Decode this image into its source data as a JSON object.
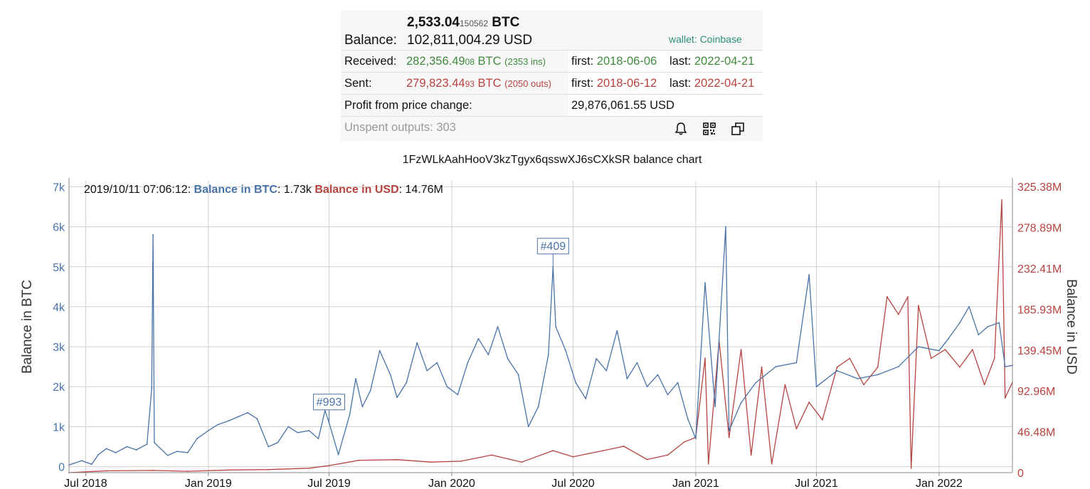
{
  "balance": {
    "btc_main": "2,533.04",
    "btc_small": "150562",
    "btc_unit": "BTC",
    "label": "Balance:",
    "usd": "102,811,004.29 USD",
    "wallet": "wallet: Coinbase"
  },
  "received": {
    "label": "Received:",
    "btc_main": "282,356.49",
    "btc_small": "08",
    "btc_unit": "BTC",
    "count": "(2353 ins)",
    "first_label": "first:",
    "first": "2018-06-06",
    "last_label": "last:",
    "last": "2022-04-21"
  },
  "sent": {
    "label": "Sent:",
    "btc_main": "279,823.44",
    "btc_small": "93",
    "btc_unit": "BTC",
    "count": "(2050 outs)",
    "first_label": "first:",
    "first": "2018-06-12",
    "last_label": "last:",
    "last": "2022-04-21"
  },
  "profit": {
    "label": "Profit from price change:",
    "value": "29,876,061.55 USD"
  },
  "unspent": {
    "label": "Unspent outputs: 303",
    "icons": [
      "bell-icon",
      "qr-code-icon",
      "copy-icon"
    ]
  },
  "chart_data": {
    "type": "line",
    "title": "1FzWLkAahHooV3kzTgyx6qsswXJ6sCXkSR balance chart",
    "tooltip": {
      "time": "2019/10/11 07:06:12:",
      "series1_name": "Balance in BTC",
      "series1_value": ": 1.73k",
      "series2_name": "Balance in USD",
      "series2_value": ": 14.76M"
    },
    "ylabel_left": "Balance in BTC",
    "ylabel_right": "Balance in USD",
    "x_ticks": [
      "Jul 2018",
      "Jan 2019",
      "Jul 2019",
      "Jan 2020",
      "Jul 2020",
      "Jan 2021",
      "Jul 2021",
      "Jan 2022"
    ],
    "x_tick_dates": [
      "2018-07-01",
      "2019-01-01",
      "2019-07-01",
      "2020-01-01",
      "2020-07-01",
      "2021-01-01",
      "2021-07-01",
      "2022-01-01"
    ],
    "xlim": [
      "2018-06-06",
      "2022-04-21"
    ],
    "y_left_ticks": [
      "0",
      "1k",
      "2k",
      "3k",
      "4k",
      "5k",
      "6k",
      "7k"
    ],
    "y_left_values": [
      0,
      1000,
      2000,
      3000,
      4000,
      5000,
      6000,
      7000
    ],
    "ylim_left": [
      -150,
      7150
    ],
    "y_right_ticks": [
      "0",
      "46.48M",
      "92.96M",
      "139.45M",
      "185.93M",
      "232.41M",
      "278.89M",
      "325.38M"
    ],
    "y_right_values": [
      0,
      46480000,
      92960000,
      139450000,
      185930000,
      232410000,
      278890000,
      325380000
    ],
    "ylim_right": [
      0,
      332000000
    ],
    "grid": true,
    "annotations": [
      {
        "label": "#993",
        "date": "2019-07-01"
      },
      {
        "label": "#409",
        "date": "2020-06-01"
      }
    ],
    "series": [
      {
        "name": "Balance in BTC",
        "color": "#4a73a8",
        "axis": "left",
        "points": [
          [
            "2018-06-06",
            40
          ],
          [
            "2018-06-25",
            150
          ],
          [
            "2018-07-10",
            60
          ],
          [
            "2018-07-20",
            300
          ],
          [
            "2018-08-01",
            450
          ],
          [
            "2018-08-15",
            350
          ],
          [
            "2018-09-01",
            500
          ],
          [
            "2018-09-15",
            420
          ],
          [
            "2018-10-01",
            560
          ],
          [
            "2018-10-08",
            1950
          ],
          [
            "2018-10-10",
            5800
          ],
          [
            "2018-10-12",
            600
          ],
          [
            "2018-11-01",
            280
          ],
          [
            "2018-11-15",
            380
          ],
          [
            "2018-12-01",
            350
          ],
          [
            "2018-12-15",
            700
          ],
          [
            "2019-01-01",
            900
          ],
          [
            "2019-01-15",
            1050
          ],
          [
            "2019-02-01",
            1150
          ],
          [
            "2019-02-15",
            1250
          ],
          [
            "2019-03-01",
            1350
          ],
          [
            "2019-03-15",
            1200
          ],
          [
            "2019-04-01",
            500
          ],
          [
            "2019-04-15",
            600
          ],
          [
            "2019-05-01",
            1000
          ],
          [
            "2019-05-15",
            850
          ],
          [
            "2019-06-01",
            900
          ],
          [
            "2019-06-15",
            700
          ],
          [
            "2019-06-25",
            1400
          ],
          [
            "2019-07-01",
            1100
          ],
          [
            "2019-07-15",
            300
          ],
          [
            "2019-08-01",
            1300
          ],
          [
            "2019-08-10",
            2200
          ],
          [
            "2019-08-20",
            1500
          ],
          [
            "2019-09-01",
            1900
          ],
          [
            "2019-09-15",
            2900
          ],
          [
            "2019-10-01",
            2300
          ],
          [
            "2019-10-11",
            1730
          ],
          [
            "2019-10-25",
            2100
          ],
          [
            "2019-11-10",
            3100
          ],
          [
            "2019-11-25",
            2400
          ],
          [
            "2019-12-10",
            2600
          ],
          [
            "2019-12-25",
            2000
          ],
          [
            "2020-01-10",
            1800
          ],
          [
            "2020-01-25",
            2600
          ],
          [
            "2020-02-10",
            3200
          ],
          [
            "2020-02-25",
            2800
          ],
          [
            "2020-03-10",
            3500
          ],
          [
            "2020-03-25",
            2700
          ],
          [
            "2020-04-10",
            2300
          ],
          [
            "2020-04-25",
            1000
          ],
          [
            "2020-05-10",
            1500
          ],
          [
            "2020-05-25",
            2800
          ],
          [
            "2020-06-01",
            5000
          ],
          [
            "2020-06-05",
            3500
          ],
          [
            "2020-06-20",
            2900
          ],
          [
            "2020-07-05",
            2100
          ],
          [
            "2020-07-20",
            1700
          ],
          [
            "2020-08-05",
            2700
          ],
          [
            "2020-08-20",
            2400
          ],
          [
            "2020-09-05",
            3400
          ],
          [
            "2020-09-20",
            2200
          ],
          [
            "2020-10-05",
            2600
          ],
          [
            "2020-10-20",
            2000
          ],
          [
            "2020-11-05",
            2300
          ],
          [
            "2020-11-20",
            1800
          ],
          [
            "2020-12-05",
            2100
          ],
          [
            "2020-12-20",
            1200
          ],
          [
            "2021-01-01",
            700
          ],
          [
            "2021-01-15",
            4600
          ],
          [
            "2021-01-30",
            1500
          ],
          [
            "2021-02-15",
            6000
          ],
          [
            "2021-02-20",
            900
          ],
          [
            "2021-03-10",
            1600
          ],
          [
            "2021-04-01",
            2100
          ],
          [
            "2021-05-01",
            2500
          ],
          [
            "2021-06-01",
            2600
          ],
          [
            "2021-06-20",
            4800
          ],
          [
            "2021-07-01",
            2000
          ],
          [
            "2021-08-01",
            2400
          ],
          [
            "2021-09-01",
            2200
          ],
          [
            "2021-10-01",
            2300
          ],
          [
            "2021-11-01",
            2500
          ],
          [
            "2021-12-01",
            3000
          ],
          [
            "2022-01-01",
            2900
          ],
          [
            "2022-01-15",
            3200
          ],
          [
            "2022-02-01",
            3600
          ],
          [
            "2022-02-15",
            4000
          ],
          [
            "2022-03-01",
            3300
          ],
          [
            "2022-03-15",
            3500
          ],
          [
            "2022-04-01",
            3600
          ],
          [
            "2022-04-10",
            2500
          ],
          [
            "2022-04-21",
            2533
          ]
        ]
      },
      {
        "name": "Balance in USD",
        "color": "#b5433f",
        "axis": "right",
        "points": [
          [
            "2018-06-06",
            0
          ],
          [
            "2018-08-01",
            2000000
          ],
          [
            "2018-10-10",
            2500000
          ],
          [
            "2018-12-01",
            1500000
          ],
          [
            "2019-02-01",
            3000000
          ],
          [
            "2019-04-01",
            3500000
          ],
          [
            "2019-06-01",
            5000000
          ],
          [
            "2019-07-01",
            8000000
          ],
          [
            "2019-08-15",
            14000000
          ],
          [
            "2019-10-11",
            14760000
          ],
          [
            "2019-12-01",
            12000000
          ],
          [
            "2020-01-15",
            13000000
          ],
          [
            "2020-03-01",
            20000000
          ],
          [
            "2020-04-15",
            12000000
          ],
          [
            "2020-06-01",
            25000000
          ],
          [
            "2020-07-01",
            18000000
          ],
          [
            "2020-08-15",
            25000000
          ],
          [
            "2020-09-15",
            30000000
          ],
          [
            "2020-10-20",
            15000000
          ],
          [
            "2020-11-20",
            20000000
          ],
          [
            "2020-12-15",
            35000000
          ],
          [
            "2021-01-01",
            40000000
          ],
          [
            "2021-01-15",
            130000000
          ],
          [
            "2021-01-20",
            10000000
          ],
          [
            "2021-02-05",
            150000000
          ],
          [
            "2021-02-20",
            40000000
          ],
          [
            "2021-03-10",
            140000000
          ],
          [
            "2021-03-25",
            20000000
          ],
          [
            "2021-04-10",
            120000000
          ],
          [
            "2021-04-25",
            10000000
          ],
          [
            "2021-05-15",
            100000000
          ],
          [
            "2021-06-01",
            50000000
          ],
          [
            "2021-06-20",
            80000000
          ],
          [
            "2021-07-10",
            60000000
          ],
          [
            "2021-08-01",
            120000000
          ],
          [
            "2021-08-20",
            130000000
          ],
          [
            "2021-09-10",
            100000000
          ],
          [
            "2021-10-01",
            120000000
          ],
          [
            "2021-10-15",
            200000000
          ],
          [
            "2021-11-01",
            180000000
          ],
          [
            "2021-11-15",
            200000000
          ],
          [
            "2021-11-20",
            5000000
          ],
          [
            "2021-12-01",
            190000000
          ],
          [
            "2021-12-20",
            130000000
          ],
          [
            "2022-01-10",
            140000000
          ],
          [
            "2022-02-01",
            120000000
          ],
          [
            "2022-02-20",
            140000000
          ],
          [
            "2022-03-10",
            100000000
          ],
          [
            "2022-03-25",
            130000000
          ],
          [
            "2022-04-05",
            310000000
          ],
          [
            "2022-04-10",
            85000000
          ],
          [
            "2022-04-21",
            102811004
          ]
        ]
      }
    ]
  }
}
